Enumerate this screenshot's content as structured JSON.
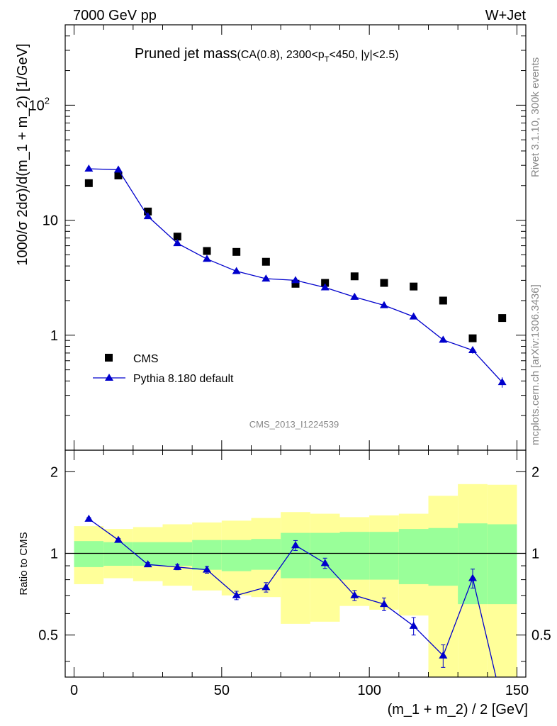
{
  "header": {
    "left": "7000 GeV pp",
    "right": "W+Jet",
    "title_main": "Pruned jet mass",
    "title_sub": "(CA(0.8), 2300<p",
    "title_sub_sub": "T",
    "title_sub_end": "<450, |y|<2.5)"
  },
  "side_labels": {
    "rivet": "Rivet 3.1.10,  300k events",
    "mcplots": "mcplots.cern.ch [arXiv:1306.3436]"
  },
  "watermark": "CMS_2013_I1224539",
  "colors": {
    "data": "#000000",
    "mc": "#0000cc",
    "band_inner": "#99ff99",
    "band_outer": "#ffff99",
    "side_text": "#888888"
  },
  "chart_data": [
    {
      "type": "scatter",
      "panel": "main",
      "ylabel": "1000/σ 2dσ)/d(m_1 + m_2) [1/GeV]",
      "yscale": "log",
      "ylim": [
        0.1,
        500
      ],
      "xlim": [
        -3,
        153
      ],
      "yticks": [
        {
          "value": 1,
          "label": "1"
        },
        {
          "value": 10,
          "label": "10"
        },
        {
          "value": 100,
          "label": "10",
          "sup": "2"
        }
      ],
      "legend_position": "lower-left",
      "legend": [
        "CMS",
        "Pythia 8.180 default"
      ],
      "series": [
        {
          "name": "CMS",
          "marker": "square",
          "x": [
            5,
            15,
            25,
            35,
            45,
            55,
            65,
            75,
            85,
            95,
            105,
            115,
            125,
            135,
            145
          ],
          "y": [
            21.0,
            24.5,
            11.9,
            7.2,
            5.4,
            5.3,
            4.35,
            2.8,
            2.85,
            3.25,
            2.85,
            2.65,
            2.0,
            0.94,
            1.41
          ]
        },
        {
          "name": "Pythia 8.180 default",
          "marker": "triangle",
          "x": [
            5,
            15,
            25,
            35,
            45,
            55,
            65,
            75,
            85,
            95,
            105,
            115,
            125,
            135,
            145
          ],
          "y": [
            28.0,
            27.5,
            10.8,
            6.3,
            4.6,
            3.6,
            3.1,
            3.0,
            2.6,
            2.15,
            1.82,
            1.45,
            0.91,
            0.74,
            0.39
          ],
          "yerr": [
            0.3,
            0.3,
            0.2,
            0.15,
            0.1,
            0.08,
            0.08,
            0.08,
            0.07,
            0.06,
            0.05,
            0.05,
            0.05,
            0.05,
            0.04
          ]
        }
      ]
    },
    {
      "type": "line",
      "panel": "ratio",
      "ylabel": "Ratio to CMS",
      "xlabel": "(m_1 + m_2) / 2 [GeV]",
      "yscale": "log",
      "ylim": [
        0.35,
        2.4
      ],
      "xlim": [
        -3,
        153
      ],
      "xticks": [
        0,
        50,
        100,
        150
      ],
      "yticks": [
        0.5,
        1,
        2
      ],
      "reference_line": 1,
      "bands": {
        "x_edges": [
          0,
          10,
          20,
          30,
          40,
          50,
          60,
          70,
          80,
          90,
          100,
          110,
          120,
          130,
          140,
          150
        ],
        "inner_lo": [
          0.89,
          0.9,
          0.9,
          0.9,
          0.87,
          0.86,
          0.87,
          0.81,
          0.81,
          0.8,
          0.8,
          0.77,
          0.76,
          0.65,
          0.65
        ],
        "inner_hi": [
          1.11,
          1.1,
          1.1,
          1.1,
          1.12,
          1.12,
          1.13,
          1.19,
          1.19,
          1.2,
          1.2,
          1.23,
          1.24,
          1.29,
          1.28
        ],
        "outer_lo": [
          0.77,
          0.81,
          0.79,
          0.76,
          0.73,
          0.7,
          0.69,
          0.55,
          0.56,
          0.64,
          0.62,
          0.59,
          0.3,
          0.3,
          0.3
        ],
        "outer_hi": [
          1.26,
          1.23,
          1.25,
          1.28,
          1.3,
          1.32,
          1.35,
          1.42,
          1.4,
          1.36,
          1.38,
          1.4,
          1.63,
          1.8,
          1.79
        ]
      },
      "series": [
        {
          "name": "Pythia 8.180 default",
          "x": [
            5,
            15,
            25,
            35,
            45,
            55,
            65,
            75,
            85,
            95,
            105,
            115,
            125,
            135,
            145
          ],
          "y": [
            1.34,
            1.12,
            0.91,
            0.89,
            0.87,
            0.7,
            0.75,
            1.07,
            0.92,
            0.7,
            0.65,
            0.54,
            0.42,
            0.81,
            0.28
          ],
          "yerr": [
            0.015,
            0.015,
            0.015,
            0.02,
            0.025,
            0.025,
            0.03,
            0.045,
            0.04,
            0.03,
            0.035,
            0.04,
            0.04,
            0.065,
            0.06
          ]
        }
      ]
    }
  ]
}
